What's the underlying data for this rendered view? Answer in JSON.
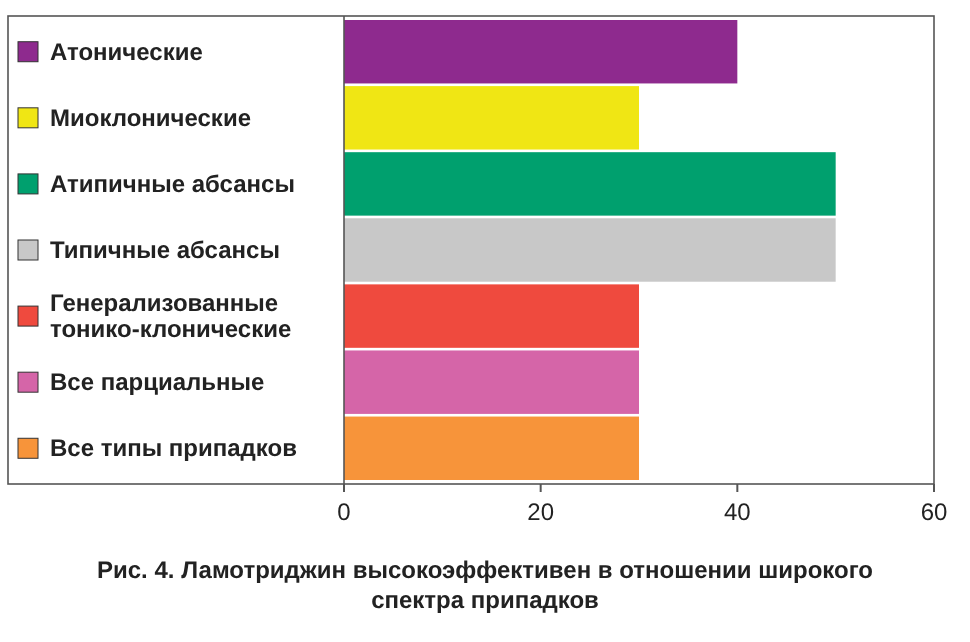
{
  "chart_data": {
    "type": "bar",
    "orientation": "horizontal",
    "title": "Рис. 4. Ламотриджин высокоэффективен в отношении широкого спектра припадков",
    "categories": [
      "Атонические",
      "Миоклонические",
      "Атипичные абсансы",
      "Типичные абсансы",
      "Генерализованные тонико-клонические",
      "Все парциальные",
      "Все типы припадков"
    ],
    "values": [
      40,
      30,
      50,
      50,
      30,
      30,
      30
    ],
    "colors": [
      "#8e2a8e",
      "#f0e614",
      "#00a06e",
      "#c8c8c8",
      "#ef4a3e",
      "#d565a8",
      "#f7943a"
    ],
    "xlim": [
      0,
      60
    ],
    "xticks": [
      0,
      20,
      40,
      60
    ],
    "grid": false
  }
}
